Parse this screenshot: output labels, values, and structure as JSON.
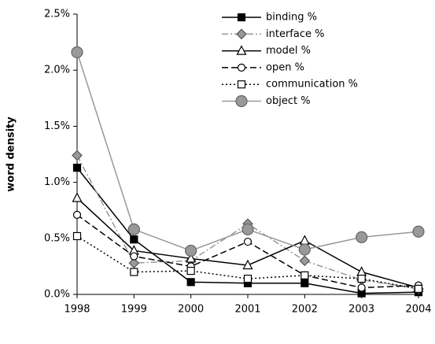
{
  "chart_data": {
    "type": "line",
    "y_label": "word density",
    "x": [
      1998,
      1999,
      2000,
      2001,
      2002,
      2003,
      2004
    ],
    "xlim": [
      1998,
      2004
    ],
    "xticks": [
      1998,
      1999,
      2000,
      2001,
      2002,
      2003,
      2004
    ],
    "ylim": [
      0,
      2.5
    ],
    "yticks": [
      {
        "value": 0,
        "label": "0.0%"
      },
      {
        "value": 0.5,
        "label": "0.5%"
      },
      {
        "value": 1,
        "label": "1.0%"
      },
      {
        "value": 1.5,
        "label": "1.5%"
      },
      {
        "value": 2,
        "label": "2.0%"
      },
      {
        "value": 2.5,
        "label": "2.5%"
      }
    ],
    "grid": false,
    "legend": "top-right",
    "series": [
      {
        "name": "binding %",
        "color": "#000000",
        "marker": "square-filled",
        "dash": "solid",
        "values": [
          1.13,
          0.49,
          0.11,
          0.1,
          0.1,
          0.01,
          0.02
        ]
      },
      {
        "name": "interface %",
        "color": "#999999",
        "marker": "diamond",
        "dash": "dashdot",
        "values": [
          1.24,
          0.28,
          0.3,
          0.63,
          0.3,
          0.13,
          0.05
        ]
      },
      {
        "name": "model %",
        "color": "#000000",
        "marker": "triangle-open",
        "dash": "solid",
        "values": [
          0.86,
          0.39,
          0.32,
          0.26,
          0.48,
          0.2,
          0.06
        ]
      },
      {
        "name": "open %",
        "color": "#000000",
        "marker": "circle-open",
        "dash": "dashed",
        "values": [
          0.71,
          0.34,
          0.25,
          0.47,
          0.17,
          0.06,
          0.08
        ]
      },
      {
        "name": "communication %",
        "color": "#000000",
        "marker": "square-open",
        "dash": "dotted",
        "values": [
          0.52,
          0.2,
          0.21,
          0.14,
          0.17,
          0.14,
          0.05
        ]
      },
      {
        "name": "object %",
        "color": "#999999",
        "marker": "circle-gray",
        "dash": "solid",
        "values": [
          2.16,
          0.58,
          0.39,
          0.58,
          0.4,
          0.51,
          0.56
        ]
      }
    ]
  }
}
